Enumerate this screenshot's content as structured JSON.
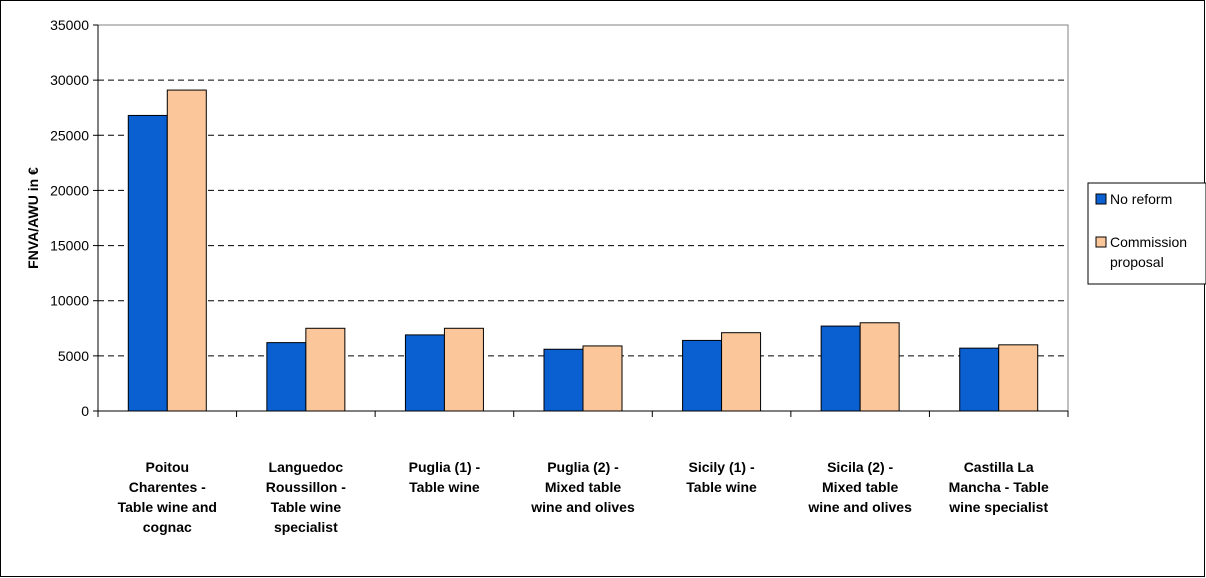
{
  "chart_data": {
    "type": "bar",
    "title": "",
    "xlabel": "",
    "ylabel": "FNVA/AWU in €",
    "ylim": [
      0,
      35000
    ],
    "yticks": [
      0,
      5000,
      10000,
      15000,
      20000,
      25000,
      30000,
      35000
    ],
    "grid": true,
    "legend_position": "right",
    "categories": [
      [
        "Poitou",
        "Charentes -",
        "Table wine and",
        "cognac"
      ],
      [
        "Languedoc",
        "Roussillon -",
        "Table wine",
        "specialist"
      ],
      [
        "Puglia (1) -",
        "Table wine"
      ],
      [
        "Puglia (2) -",
        "Mixed table",
        "wine and olives"
      ],
      [
        "Sicily (1) -",
        "Table wine"
      ],
      [
        "Sicila (2) -",
        "Mixed table",
        "wine and olives"
      ],
      [
        "Castilla La",
        "Mancha - Table",
        "wine specialist"
      ]
    ],
    "series": [
      {
        "name": "No reform",
        "color": "#0a5fd1",
        "values": [
          26800,
          6200,
          6900,
          5600,
          6400,
          7700,
          5700
        ]
      },
      {
        "name": "Commission proposal",
        "color": "#fbc79a",
        "values": [
          29100,
          7500,
          7500,
          5900,
          7100,
          8000,
          6000
        ]
      }
    ],
    "legend": [
      [
        "No reform"
      ],
      [
        "Commission",
        "proposal"
      ]
    ]
  }
}
